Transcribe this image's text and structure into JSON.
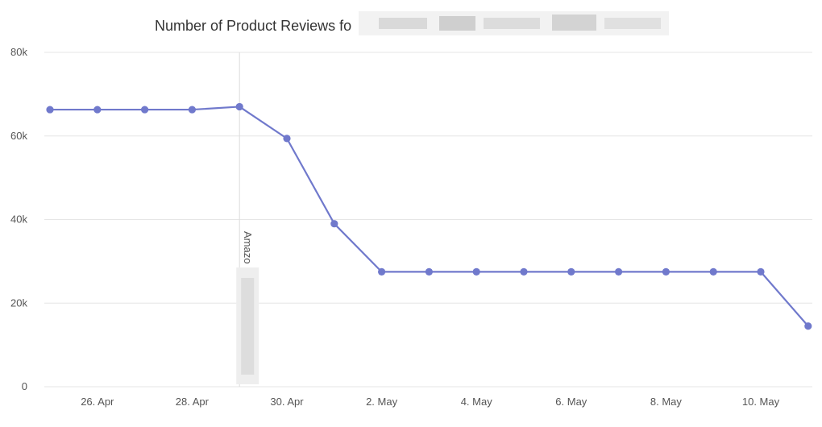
{
  "chart_data": {
    "type": "line",
    "title": "Number of Product Reviews fo",
    "xlabel": "",
    "ylabel": "",
    "ylim": [
      0,
      80000
    ],
    "y_ticks": [
      0,
      20000,
      40000,
      60000,
      80000
    ],
    "y_tick_labels": [
      "0",
      "20k",
      "40k",
      "60k",
      "80k"
    ],
    "x_tick_labels": [
      "26. Apr",
      "28. Apr",
      "30. Apr",
      "2. May",
      "4. May",
      "6. May",
      "8. May",
      "10. May"
    ],
    "x": [
      "25. Apr",
      "26. Apr",
      "27. Apr",
      "28. Apr",
      "29. Apr",
      "30. Apr",
      "1. May",
      "2. May",
      "3. May",
      "4. May",
      "5. May",
      "6. May",
      "7. May",
      "8. May",
      "9. May",
      "10. May",
      "11. May"
    ],
    "series": [
      {
        "values": [
          66300,
          66300,
          66300,
          66300,
          67000,
          59400,
          39000,
          27500,
          27500,
          27500,
          27500,
          27500,
          27500,
          27500,
          27500,
          27500,
          14500
        ]
      }
    ],
    "annotations": [
      {
        "x": "29. Apr",
        "text": "Amazo"
      }
    ],
    "grid": true,
    "legend": "none",
    "colors": {
      "series": "#7079cc",
      "grid": "#e6e6e6",
      "annotation_line": "#dddddd",
      "axis_text": "#555555",
      "title": "#333333"
    }
  }
}
